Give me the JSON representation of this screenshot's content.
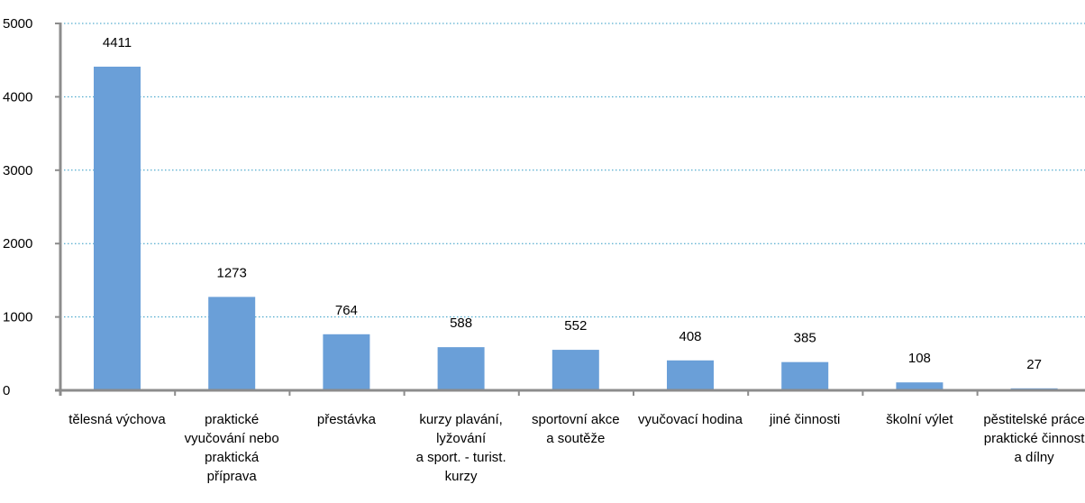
{
  "chart_data": {
    "type": "bar",
    "categories": [
      [
        "tělesná výchova"
      ],
      [
        "praktické",
        "vyučování nebo",
        "praktická",
        "příprava"
      ],
      [
        "přestávka"
      ],
      [
        "kurzy plavání,",
        "lyžování",
        "a sport. - turist.",
        "kurzy"
      ],
      [
        "sportovní akce",
        "a soutěže"
      ],
      [
        "vyučovací hodina"
      ],
      [
        "jiné činnosti"
      ],
      [
        "školní výlet"
      ],
      [
        "pěstitelské práce",
        "praktické činnost",
        "a dílny"
      ]
    ],
    "values": [
      4411,
      1273,
      764,
      588,
      552,
      408,
      385,
      108,
      27
    ],
    "value_labels": [
      "4411",
      "1273",
      "764",
      "588",
      "552",
      "408",
      "385",
      "108",
      "27"
    ],
    "yticks": [
      "0",
      "1000",
      "2000",
      "3000",
      "4000",
      "5000"
    ],
    "ylim": [
      0,
      5000
    ],
    "grid": true,
    "legend": false,
    "bar_color": "#6a9fd8",
    "grid_color": "#2e9ac4",
    "axis_color": "#8c8c8c"
  }
}
